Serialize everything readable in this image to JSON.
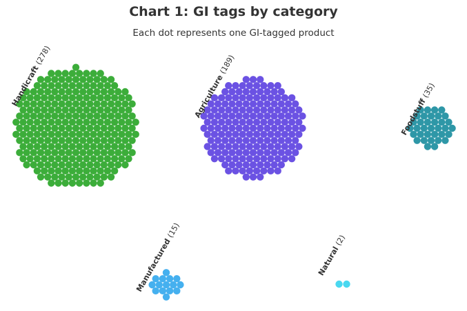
{
  "chart_data": {
    "type": "dot-cluster",
    "title": "Chart 1: GI tags by category",
    "subtitle": "Each dot represents one GI-tagged product",
    "categories": [
      {
        "name": "Handicraft",
        "count": 278,
        "color": "#3cad3a"
      },
      {
        "name": "Agriculture",
        "count": 189,
        "color": "#6b52e3"
      },
      {
        "name": "Foodstuff",
        "count": 35,
        "color": "#2e97a7"
      },
      {
        "name": "Manufactured",
        "count": 15,
        "color": "#45b0ef"
      },
      {
        "name": "Natural",
        "count": 2,
        "color": "#4ad8f0"
      }
    ]
  }
}
